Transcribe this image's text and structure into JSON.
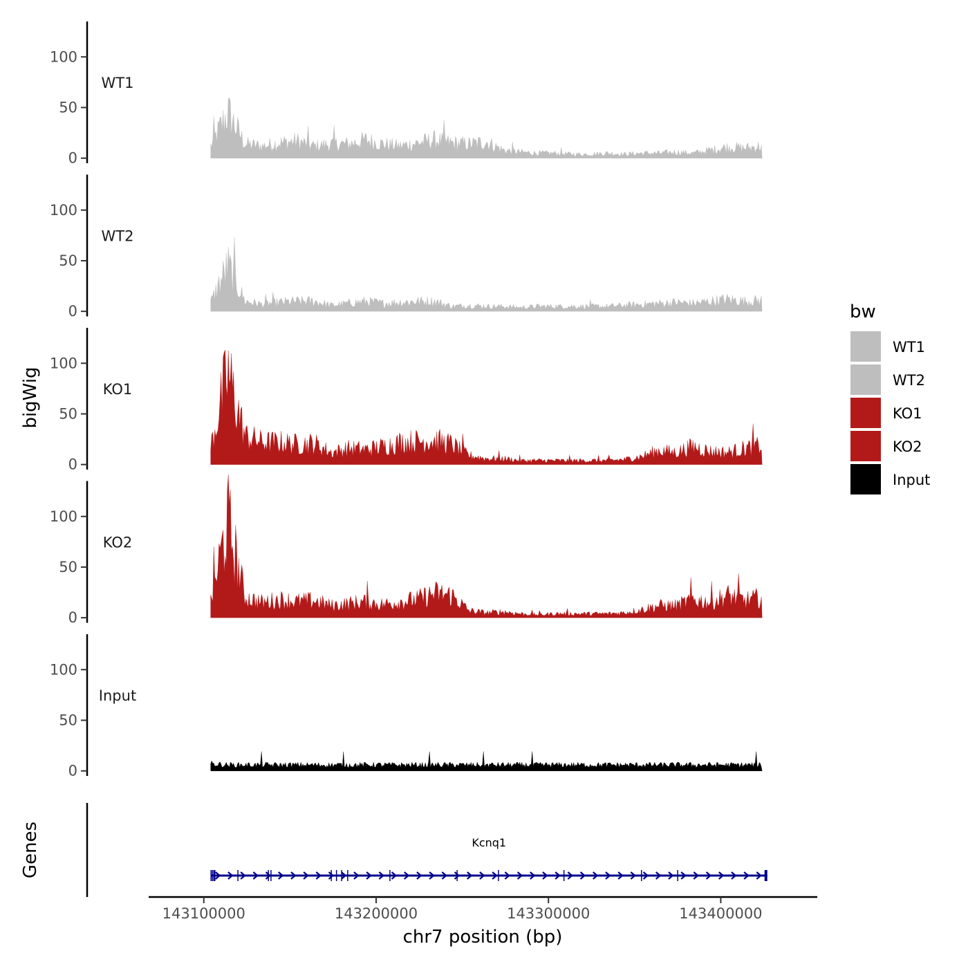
{
  "chart_data": {
    "type": "area",
    "title": "",
    "xlabel": "chr7 position (bp)",
    "ylabel": "bigWig",
    "genes_label": "Genes",
    "xlim": [
      143068000,
      143456000
    ],
    "data_xrange": [
      143104000,
      143427000
    ],
    "xticks": [
      143100000,
      143200000,
      143300000,
      143400000
    ],
    "xtick_labels": [
      "143100000",
      "143200000",
      "143300000",
      "143400000"
    ],
    "ylim": [
      -5,
      135
    ],
    "yticks": [
      0,
      50,
      100
    ],
    "ytick_labels": [
      "0",
      "50",
      "100"
    ],
    "legend": {
      "title": "bw",
      "position": "right",
      "entries": [
        {
          "label": "WT1",
          "color": "#bebebe"
        },
        {
          "label": "WT2",
          "color": "#bebebe"
        },
        {
          "label": "KO1",
          "color": "#b21a1a"
        },
        {
          "label": "KO2",
          "color": "#b21a1a"
        },
        {
          "label": "Input",
          "color": "#000000"
        }
      ]
    },
    "series": [
      {
        "name": "WT1",
        "color": "#bebebe",
        "x_start": 143104000,
        "x_step": 10000,
        "values": [
          12,
          45,
          14,
          12,
          15,
          17,
          12,
          14,
          14,
          18,
          14,
          12,
          15,
          18,
          15,
          14,
          16,
          8,
          6,
          5,
          5,
          4,
          4,
          5,
          4,
          5,
          5,
          6,
          5,
          8,
          11,
          10,
          12
        ]
      },
      {
        "name": "WT2",
        "color": "#bebebe",
        "x_start": 143104000,
        "x_step": 10000,
        "values": [
          9,
          45,
          10,
          7,
          9,
          10,
          10,
          6,
          8,
          10,
          8,
          9,
          10,
          10,
          5,
          6,
          5,
          5,
          4,
          5,
          5,
          5,
          5,
          5,
          6,
          7,
          8,
          9,
          8,
          10,
          12,
          10,
          11
        ]
      },
      {
        "name": "KO1",
        "color": "#b21a1a",
        "x_start": 143104000,
        "x_step": 10000,
        "values": [
          18,
          90,
          28,
          22,
          22,
          20,
          21,
          12,
          16,
          15,
          18,
          22,
          23,
          24,
          20,
          9,
          6,
          6,
          4,
          4,
          4,
          4,
          4,
          4,
          5,
          8,
          14,
          12,
          18,
          13,
          12,
          16,
          19
        ]
      },
      {
        "name": "KO2",
        "color": "#b21a1a",
        "x_start": 143104000,
        "x_step": 10000,
        "values": [
          16,
          95,
          20,
          15,
          18,
          16,
          17,
          12,
          14,
          16,
          13,
          16,
          18,
          24,
          22,
          7,
          5,
          6,
          4,
          3,
          4,
          4,
          4,
          4,
          5,
          8,
          12,
          12,
          18,
          15,
          22,
          17,
          20
        ]
      },
      {
        "name": "Input",
        "color": "#000000",
        "x_start": 143104000,
        "x_step": 10000,
        "values": [
          7,
          6,
          6,
          6,
          6,
          6,
          6,
          6,
          6,
          6,
          6,
          6,
          6,
          6,
          6,
          6,
          6,
          6,
          6,
          6,
          6,
          6,
          6,
          6,
          6,
          6,
          6,
          6,
          6,
          6,
          6,
          6,
          6
        ]
      }
    ],
    "gene": {
      "name": "Kcnq1",
      "start": 143104000,
      "end": 143427000,
      "strand": "+",
      "color": "#00008b",
      "exons": [
        143104200,
        143105000,
        143105800,
        143106400,
        143119800,
        143137500,
        143139000,
        143174000,
        143177000,
        143180000,
        143183500,
        143208000,
        143247000,
        143271000,
        143309000,
        143354000,
        143375000,
        143426200
      ]
    }
  }
}
